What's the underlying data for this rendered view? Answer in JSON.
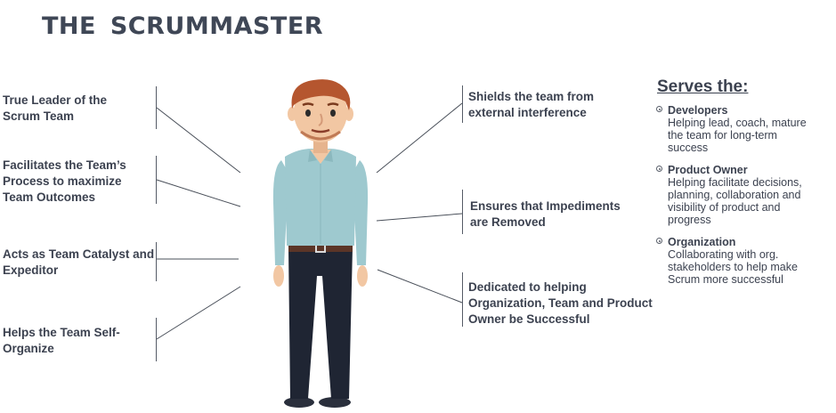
{
  "title": "THE SCRUMMASTER",
  "left_roles": [
    "True Leader of the\nScrum Team",
    "Facilitates the Team’s\nProcess to maximize\nTeam Outcomes",
    "Acts as Team Catalyst and\nExpeditor",
    "Helps the Team Self-\nOrganize"
  ],
  "right_roles": [
    "Shields the team from\nexternal interference",
    "Ensures that Impediments\nare Removed",
    "Dedicated to helping\nOrganization, Team and Product\nOwner be Successful"
  ],
  "serves": {
    "heading": "Serves the:",
    "items": [
      {
        "name": "Developers",
        "description": "Helping lead, coach, mature\nthe team for long-term\nsuccess"
      },
      {
        "name": "Product Owner",
        "description": "Helping facilitate decisions,\nplanning, collaboration and\nvisibility of product and\nprogress"
      },
      {
        "name": "Organization",
        "description": "Collaborating with org.\nstakeholders to help make\nScrum more successful"
      }
    ]
  },
  "colors": {
    "text": "#3c4250",
    "shirt": "#9ec9cf",
    "pants": "#1f2533",
    "hair": "#b5562f",
    "skin": "#f2c7a3"
  },
  "icons": [
    "scrummaster-figure-icon",
    "bullet-circle-icon"
  ]
}
